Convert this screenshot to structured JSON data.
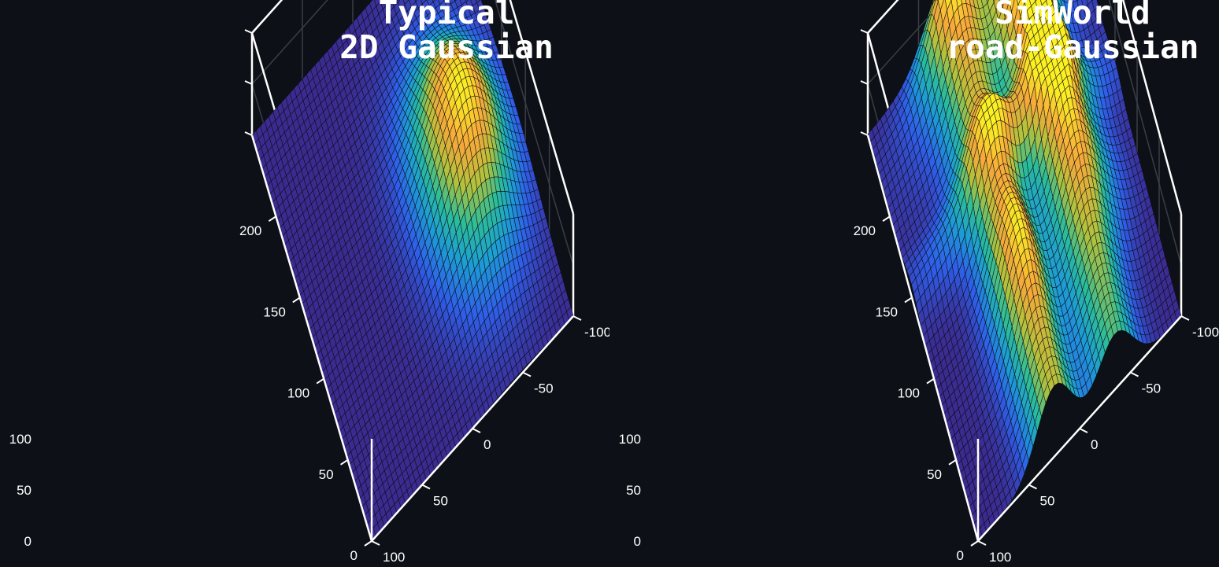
{
  "chart_data": [
    {
      "type": "surface3d",
      "title": [
        "Typical",
        "2D Gaussian"
      ],
      "surface": {
        "kind": "gaussian_2d",
        "peak": 100,
        "center": {
          "x": 120,
          "y": -45
        },
        "sigma": {
          "x": 45,
          "y": 28
        }
      },
      "grid_size": 48,
      "x_ticks": [
        0,
        50,
        100,
        150,
        200
      ],
      "y_ticks": [
        -100,
        -50,
        0,
        50,
        100
      ],
      "z_ticks": [
        0,
        50,
        100
      ],
      "xlim": [
        0,
        250
      ],
      "ylim": [
        -100,
        100
      ],
      "zlim": [
        0,
        100
      ],
      "colormap": [
        "#3b2b8f",
        "#2f5ee8",
        "#1d9bd6",
        "#2bbd9a",
        "#b2c23c",
        "#f7a83a",
        "#fbf022"
      ]
    },
    {
      "type": "surface3d",
      "title": [
        "SimWorld",
        "road-Gaussian"
      ],
      "surface": {
        "kind": "road_gaussian_sum",
        "components": [
          {
            "x": 40,
            "y": 25,
            "sigma_x": 250,
            "sigma_y": 17,
            "amplitude": 70
          },
          {
            "x": 85,
            "y": 25,
            "sigma_x": 28,
            "sigma_y": 17,
            "amplitude": 30
          },
          {
            "x": 150,
            "y": -35,
            "sigma_x": 200,
            "sigma_y": 17,
            "amplitude": 72
          },
          {
            "x": 150,
            "y": -35,
            "sigma_x": 36,
            "sigma_y": 17,
            "amplitude": 28
          },
          {
            "x": 210,
            "y": -35,
            "sigma_x": 24,
            "sigma_y": 17,
            "amplitude": 25
          },
          {
            "x": 210,
            "y": -10,
            "sigma_x": 22,
            "sigma_y": 55,
            "amplitude": 30
          },
          {
            "x": 235,
            "y": 30,
            "sigma_x": 12,
            "sigma_y": 25,
            "amplitude": 38
          },
          {
            "x": 150,
            "y": 0,
            "sigma_x": 14,
            "sigma_y": 60,
            "amplitude": 45
          },
          {
            "x": 100,
            "y": -60,
            "sigma_x": 30,
            "sigma_y": 18,
            "amplitude": 25
          }
        ]
      },
      "grid_size": 48,
      "x_ticks": [
        0,
        50,
        100,
        150,
        200
      ],
      "y_ticks": [
        -100,
        -50,
        0,
        50,
        100
      ],
      "z_ticks": [
        0,
        50,
        100
      ],
      "xlim": [
        0,
        250
      ],
      "ylim": [
        -100,
        100
      ],
      "zlim": [
        0,
        100
      ],
      "colormap": [
        "#3b2b8f",
        "#2f5ee8",
        "#1d9bd6",
        "#2bbd9a",
        "#b2c23c",
        "#f7a83a",
        "#fbf022"
      ]
    }
  ]
}
